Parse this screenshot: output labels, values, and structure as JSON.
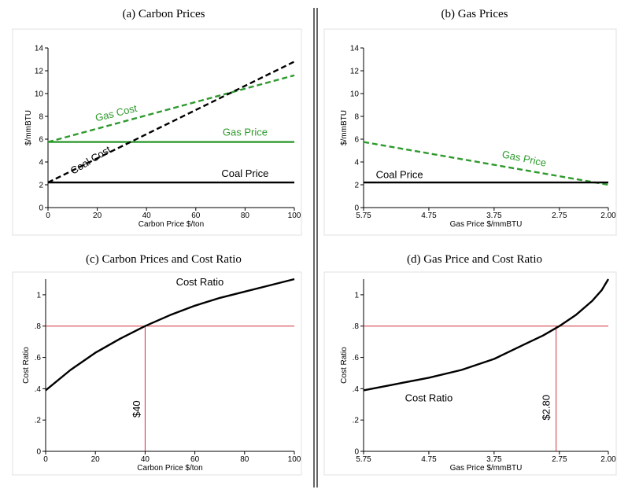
{
  "chart_data": [
    {
      "id": "a",
      "type": "line",
      "title": "(a) Carbon Prices",
      "xlabel": "Carbon Price $/ton",
      "ylabel": "$/mmBTU",
      "xlim": [
        0,
        100
      ],
      "ylim": [
        0,
        14
      ],
      "xticks": [
        0,
        20,
        40,
        60,
        80,
        100
      ],
      "xtick_labels": [
        "0",
        "20",
        "40",
        "60",
        "80",
        "100"
      ],
      "yticks": [
        0,
        2,
        4,
        6,
        8,
        10,
        12,
        14
      ],
      "ytick_labels": [
        "0",
        "2",
        "4",
        "6",
        "8",
        "10",
        "12",
        "14"
      ],
      "series": [
        {
          "name": "Gas Cost",
          "color": "#2e9a2e",
          "dash": true,
          "x": [
            0,
            100
          ],
          "y": [
            5.75,
            11.6
          ]
        },
        {
          "name": "Gas Price",
          "color": "#2e9a2e",
          "dash": false,
          "x": [
            0,
            100
          ],
          "y": [
            5.75,
            5.75
          ]
        },
        {
          "name": "Coal Cost",
          "color": "#000000",
          "dash": true,
          "x": [
            0,
            100
          ],
          "y": [
            2.2,
            12.8
          ]
        },
        {
          "name": "Coal Price",
          "color": "#000000",
          "dash": false,
          "x": [
            0,
            100
          ],
          "y": [
            2.2,
            2.2
          ]
        }
      ],
      "labels": [
        {
          "text": "Gas Cost",
          "color": "#2e9a2e",
          "x": 28,
          "y": 8.0,
          "angle": -14
        },
        {
          "text": "Gas Price",
          "color": "#2e9a2e",
          "x": 80,
          "y": 6.3,
          "angle": 0
        },
        {
          "text": "Coal Cost",
          "color": "#000000",
          "x": 18,
          "y": 3.9,
          "angle": -31
        },
        {
          "text": "Coal Price",
          "color": "#000000",
          "x": 80,
          "y": 2.7,
          "angle": 0
        }
      ]
    },
    {
      "id": "b",
      "type": "line",
      "title": "(b) Gas Prices",
      "xlabel": "Gas Price $/mmBTU",
      "ylabel": "$/mmBTU",
      "xlim": [
        5.75,
        2.0
      ],
      "ylim": [
        0,
        14
      ],
      "xticks": [
        5.75,
        4.75,
        3.75,
        2.75,
        2.0
      ],
      "xtick_labels": [
        "5.75",
        "4.75",
        "3.75",
        "2.75",
        "2.00"
      ],
      "yticks": [
        0,
        2,
        4,
        6,
        8,
        10,
        12,
        14
      ],
      "ytick_labels": [
        "0",
        "2",
        "4",
        "6",
        "8",
        "10",
        "12",
        "14"
      ],
      "series": [
        {
          "name": "Gas Price",
          "color": "#2e9a2e",
          "dash": true,
          "x": [
            5.75,
            2.0
          ],
          "y": [
            5.75,
            2.0
          ]
        },
        {
          "name": "Coal Price",
          "color": "#000000",
          "dash": false,
          "x": [
            5.75,
            2.0
          ],
          "y": [
            2.2,
            2.2
          ]
        }
      ],
      "labels": [
        {
          "text": "Coal Price",
          "color": "#000000",
          "x": 5.2,
          "y": 2.6,
          "angle": 0
        },
        {
          "text": "Gas Price",
          "color": "#2e9a2e",
          "x": 3.3,
          "y": 4.0,
          "angle": 12
        }
      ]
    },
    {
      "id": "c",
      "type": "line",
      "title": "(c) Carbon Prices and Cost Ratio",
      "xlabel": "Carbon Price $/ton",
      "ylabel": "Cost Ratio",
      "xlim": [
        0,
        100
      ],
      "ylim": [
        0,
        1.1
      ],
      "xticks": [
        0,
        20,
        40,
        60,
        80,
        100
      ],
      "xtick_labels": [
        "0",
        "20",
        "40",
        "60",
        "80",
        "100"
      ],
      "yticks": [
        0,
        0.2,
        0.4,
        0.6,
        0.8,
        1.0
      ],
      "ytick_labels": [
        "0",
        ".2",
        ".4",
        ".6",
        ".8",
        "1"
      ],
      "series": [
        {
          "name": "Cost Ratio",
          "color": "#000000",
          "dash": false,
          "x": [
            0,
            10,
            20,
            30,
            40,
            50,
            60,
            70,
            80,
            90,
            100
          ],
          "y": [
            0.39,
            0.52,
            0.63,
            0.72,
            0.8,
            0.87,
            0.93,
            0.98,
            1.02,
            1.06,
            1.1
          ]
        }
      ],
      "reference_lines": {
        "color": "#d0303a",
        "h": 0.8,
        "v": 40
      },
      "labels": [
        {
          "text": "Cost Ratio",
          "color": "#000000",
          "x": 62,
          "y": 1.06,
          "angle": 0
        },
        {
          "text": "$40",
          "color": "#000000",
          "x": 38,
          "y": 0.27,
          "angle": -90
        }
      ]
    },
    {
      "id": "d",
      "type": "line",
      "title": "(d) Gas Price and Cost Ratio",
      "xlabel": "Gas Price $/mmBTU",
      "ylabel": "Cost Ratio",
      "xlim": [
        5.75,
        2.0
      ],
      "ylim": [
        0,
        1.1
      ],
      "xticks": [
        5.75,
        4.75,
        3.75,
        2.75,
        2.0
      ],
      "xtick_labels": [
        "5.75",
        "4.75",
        "3.75",
        "2.75",
        "2.00"
      ],
      "yticks": [
        0,
        0.2,
        0.4,
        0.6,
        0.8,
        1.0
      ],
      "ytick_labels": [
        "0",
        ".2",
        ".4",
        ".6",
        ".8",
        "1"
      ],
      "series": [
        {
          "name": "Cost Ratio",
          "color": "#000000",
          "dash": false,
          "x": [
            5.75,
            5.25,
            4.75,
            4.25,
            3.75,
            3.25,
            3.0,
            2.75,
            2.5,
            2.25,
            2.1,
            2.0
          ],
          "y": [
            0.39,
            0.43,
            0.47,
            0.52,
            0.59,
            0.69,
            0.74,
            0.8,
            0.87,
            0.96,
            1.03,
            1.1
          ]
        }
      ],
      "reference_lines": {
        "color": "#d0303a",
        "h": 0.8,
        "v": 2.8
      },
      "labels": [
        {
          "text": "Cost Ratio",
          "color": "#000000",
          "x": 4.75,
          "y": 0.32,
          "angle": 0
        },
        {
          "text": "$2.80",
          "color": "#000000",
          "x": 2.9,
          "y": 0.28,
          "angle": -90
        }
      ]
    }
  ]
}
